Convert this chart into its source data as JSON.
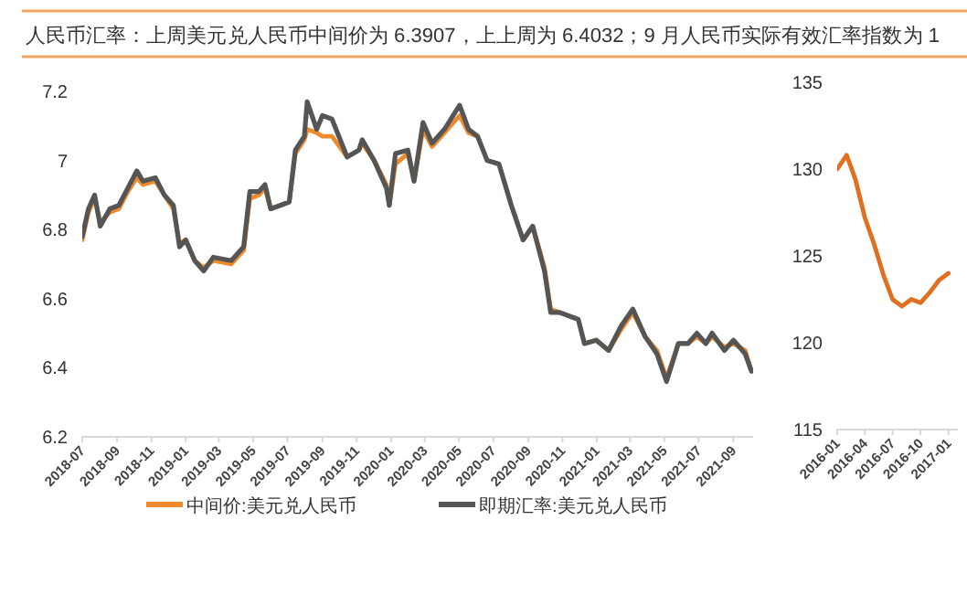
{
  "chart_data": [
    {
      "type": "line",
      "title": "人民币汇率：上周美元兑人民币中间价为 6.3907，上上周为 6.4032；9 月人民币实际有效汇率指数为 1",
      "x": [
        "2018-07-01",
        "2018-07-12",
        "2018-07-23",
        "2018-08-02",
        "2018-08-19",
        "2018-09-04",
        "2018-09-20",
        "2018-10-06",
        "2018-10-17",
        "2018-11-08",
        "2018-11-24",
        "2018-12-10",
        "2018-12-21",
        "2019-01-01",
        "2019-01-17",
        "2019-02-02",
        "2019-02-19",
        "2019-03-23",
        "2019-04-14",
        "2019-04-25",
        "2019-05-11",
        "2019-05-22",
        "2019-06-01",
        "2019-06-18",
        "2019-07-04",
        "2019-07-15",
        "2019-07-31",
        "2019-08-05",
        "2019-08-22",
        "2019-09-01",
        "2019-09-18",
        "2019-10-15",
        "2019-11-05",
        "2019-11-11",
        "2019-12-02",
        "2019-12-24",
        "2019-12-29",
        "2020-01-09",
        "2020-01-31",
        "2020-02-11",
        "2020-02-27",
        "2020-03-14",
        "2020-04-05",
        "2020-05-02",
        "2020-05-18",
        "2020-06-03",
        "2020-06-20",
        "2020-07-11",
        "2020-08-02",
        "2020-08-23",
        "2020-09-09",
        "2020-09-30",
        "2020-10-11",
        "2020-10-27",
        "2020-11-29",
        "2020-12-10",
        "2020-12-31",
        "2021-01-22",
        "2021-02-13",
        "2021-03-06",
        "2021-03-28",
        "2021-04-18",
        "2021-05-05",
        "2021-05-26",
        "2021-06-12",
        "2021-06-28",
        "2021-07-14",
        "2021-07-25",
        "2021-08-16",
        "2021-09-01",
        "2021-09-22",
        "2021-10-03"
      ],
      "series": [
        {
          "name": "中间价:美元兑人民币",
          "color": "#f08a2c",
          "values": [
            6.77,
            6.85,
            6.89,
            6.82,
            6.85,
            6.86,
            6.91,
            6.95,
            6.93,
            6.94,
            6.9,
            6.86,
            6.76,
            6.77,
            6.71,
            6.69,
            6.71,
            6.7,
            6.74,
            6.89,
            6.9,
            6.92,
            6.86,
            6.87,
            6.88,
            7.02,
            7.06,
            7.09,
            7.08,
            7.07,
            7.07,
            7.01,
            7.03,
            7.05,
            7.0,
            6.93,
            6.87,
            6.99,
            7.02,
            6.94,
            7.09,
            7.04,
            7.08,
            7.13,
            7.08,
            7.07,
            7.0,
            6.99,
            6.87,
            6.77,
            6.81,
            6.69,
            6.57,
            6.56,
            6.54,
            6.47,
            6.48,
            6.45,
            6.51,
            6.56,
            6.49,
            6.45,
            6.37,
            6.47,
            6.47,
            6.49,
            6.47,
            6.49,
            6.46,
            6.47,
            6.45,
            6.39
          ]
        },
        {
          "name": "即期汇率:美元兑人民币",
          "color": "#555555",
          "values": [
            6.78,
            6.86,
            6.9,
            6.81,
            6.86,
            6.87,
            6.92,
            6.97,
            6.94,
            6.95,
            6.9,
            6.87,
            6.75,
            6.77,
            6.71,
            6.68,
            6.72,
            6.71,
            6.75,
            6.91,
            6.91,
            6.93,
            6.86,
            6.87,
            6.88,
            7.03,
            7.07,
            7.17,
            7.09,
            7.13,
            7.12,
            7.01,
            7.03,
            7.06,
            7.0,
            6.92,
            6.87,
            7.02,
            7.03,
            6.94,
            7.11,
            7.05,
            7.09,
            7.16,
            7.09,
            7.07,
            7.0,
            6.99,
            6.87,
            6.77,
            6.81,
            6.68,
            6.56,
            6.56,
            6.54,
            6.47,
            6.48,
            6.45,
            6.52,
            6.57,
            6.49,
            6.44,
            6.36,
            6.47,
            6.47,
            6.5,
            6.47,
            6.5,
            6.45,
            6.48,
            6.44,
            6.39
          ]
        }
      ],
      "xlim": [
        "2018-07-01",
        "2021-10-06"
      ],
      "xticks": [
        "2018-07",
        "2018-09",
        "2018-11",
        "2019-01",
        "2019-03",
        "2019-05",
        "2019-07",
        "2019-09",
        "2019-11",
        "2020-01",
        "2020-03",
        "2020-05",
        "2020-07",
        "2020-09",
        "2020-11",
        "2021-01",
        "2021-03",
        "2021-05",
        "2021-07",
        "2021-09"
      ],
      "ylim": [
        6.2,
        7.2
      ],
      "yticks": [
        6.2,
        6.4,
        6.6,
        6.8,
        7.0,
        7.2
      ],
      "legend": "bottom"
    },
    {
      "type": "line",
      "x": [
        "2016-01",
        "2016-02",
        "2016-03",
        "2016-04",
        "2016-05",
        "2016-06",
        "2016-07",
        "2016-08",
        "2016-09",
        "2016-10",
        "2016-11",
        "2016-12",
        "2017-01"
      ],
      "series": [
        {
          "color": "#e0701f",
          "values": [
            130.0,
            130.8,
            129.4,
            127.2,
            125.7,
            123.9,
            122.5,
            122.1,
            122.5,
            122.3,
            122.9,
            123.6,
            124.0
          ]
        }
      ],
      "xlim": [
        "2016-01",
        "2017-02"
      ],
      "xticks": [
        "2016-01",
        "2016-04",
        "2016-07",
        "2016-10",
        "2017-01"
      ],
      "ylim": [
        115,
        135
      ],
      "yticks": [
        115,
        120,
        125,
        130,
        135
      ]
    }
  ]
}
